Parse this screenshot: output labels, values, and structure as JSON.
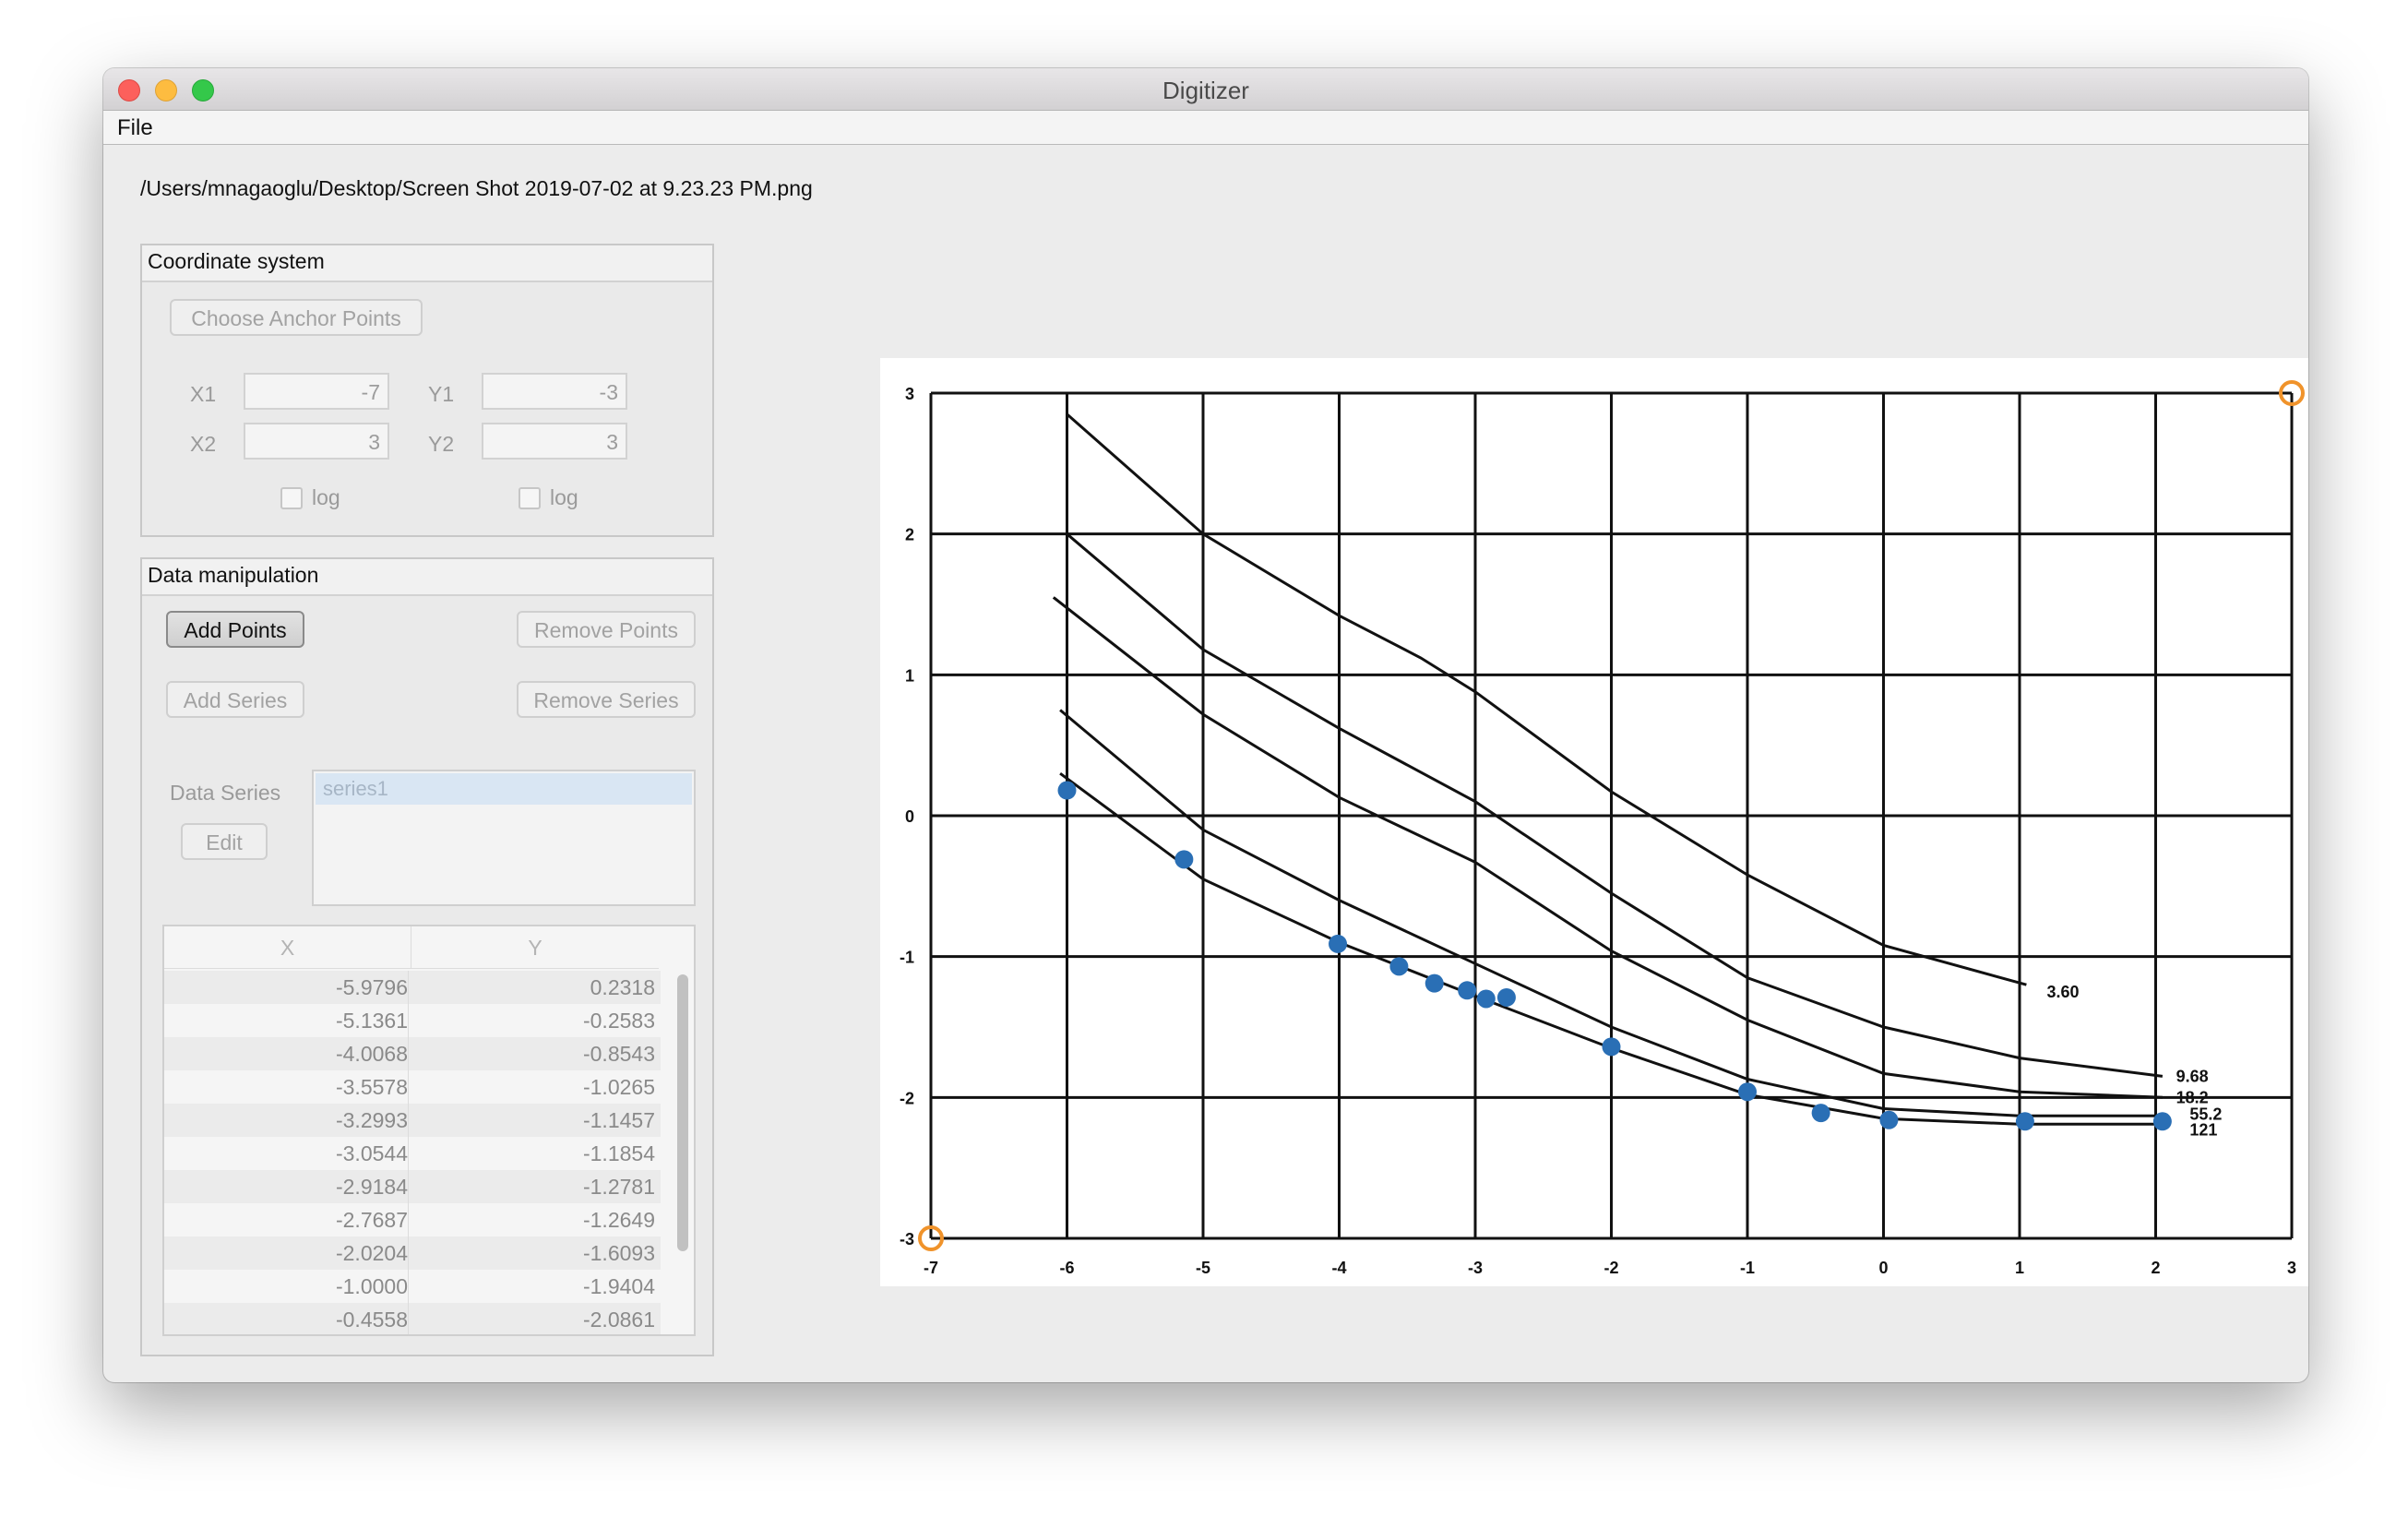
{
  "window": {
    "title": "Digitizer"
  },
  "menu": {
    "file": "File"
  },
  "file_path": "/Users/mnagaoglu/Desktop/Screen Shot 2019-07-02 at 9.23.23 PM.png",
  "coordinate_system": {
    "title": "Coordinate system",
    "choose_anchor_label": "Choose Anchor Points",
    "x1_label": "X1",
    "x1_value": "-7",
    "x2_label": "X2",
    "x2_value": "3",
    "y1_label": "Y1",
    "y1_value": "-3",
    "y2_label": "Y2",
    "y2_value": "3",
    "x_log_label": "log",
    "x_log_checked": false,
    "y_log_label": "log",
    "y_log_checked": false
  },
  "data_manipulation": {
    "title": "Data manipulation",
    "add_points": "Add Points",
    "remove_points": "Remove Points",
    "add_series": "Add Series",
    "remove_series": "Remove Series",
    "data_series_label": "Data Series",
    "edit": "Edit",
    "series": [
      "series1"
    ]
  },
  "table": {
    "headers": [
      "X",
      "Y"
    ],
    "rows": [
      [
        "-5.9796",
        "0.2318"
      ],
      [
        "-5.1361",
        "-0.2583"
      ],
      [
        "-4.0068",
        "-0.8543"
      ],
      [
        "-3.5578",
        "-1.0265"
      ],
      [
        "-3.2993",
        "-1.1457"
      ],
      [
        "-3.0544",
        "-1.1854"
      ],
      [
        "-2.9184",
        "-1.2781"
      ],
      [
        "-2.7687",
        "-1.2649"
      ],
      [
        "-2.0204",
        "-1.6093"
      ],
      [
        "-1.0000",
        "-1.9404"
      ],
      [
        "-0.4558",
        "-2.0861"
      ]
    ]
  },
  "plot_image": {
    "x_ticks": [
      "-7",
      "-6",
      "-5",
      "-4",
      "-3",
      "-2",
      "-1",
      "0",
      "1",
      "2",
      "3"
    ],
    "y_ticks": [
      "-3",
      "-2",
      "-1",
      "0",
      "1",
      "2",
      "3"
    ],
    "curve_labels": [
      "3.60",
      "9.68",
      "18.2",
      "55.2",
      "121"
    ],
    "anchor_color": "#f0932b",
    "point_color": "#2a6fb5",
    "digitized_points": [
      [
        -6.0,
        0.18
      ],
      [
        -5.14,
        -0.31
      ],
      [
        -4.01,
        -0.91
      ],
      [
        -3.56,
        -1.07
      ],
      [
        -3.3,
        -1.19
      ],
      [
        -3.06,
        -1.24
      ],
      [
        -2.92,
        -1.3
      ],
      [
        -2.77,
        -1.29
      ],
      [
        -2.0,
        -1.64
      ],
      [
        -1.0,
        -1.96
      ],
      [
        -0.46,
        -2.11
      ],
      [
        0.04,
        -2.16
      ],
      [
        1.04,
        -2.17
      ],
      [
        2.05,
        -2.17
      ]
    ]
  }
}
